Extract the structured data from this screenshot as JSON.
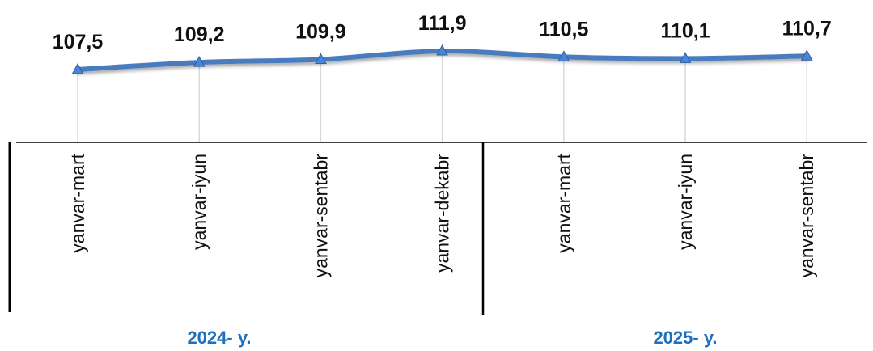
{
  "chart_data": {
    "type": "line",
    "categories": [
      "yanvar-mart",
      "yanvar-iyun",
      "yanvar-sentabr",
      "yanvar-dekabr",
      "yanvar-mart",
      "yanvar-iyun",
      "yanvar-sentabr"
    ],
    "values": [
      107.5,
      109.2,
      109.9,
      111.9,
      110.5,
      110.1,
      110.7
    ],
    "data_labels": [
      "107,5",
      "109,2",
      "109,9",
      "111,9",
      "110,5",
      "110,1",
      "110,7"
    ],
    "groups": [
      {
        "label": "2024- y.",
        "categories": 4
      },
      {
        "label": "2025- y.",
        "categories": 3
      }
    ],
    "grid": false,
    "legend": "none",
    "colors": {
      "line": "#4a7cbf",
      "marker": "#4a86d6",
      "group_label": "#1f6fbf",
      "axis": "#000000",
      "dropline": "#d9d9d9"
    }
  }
}
